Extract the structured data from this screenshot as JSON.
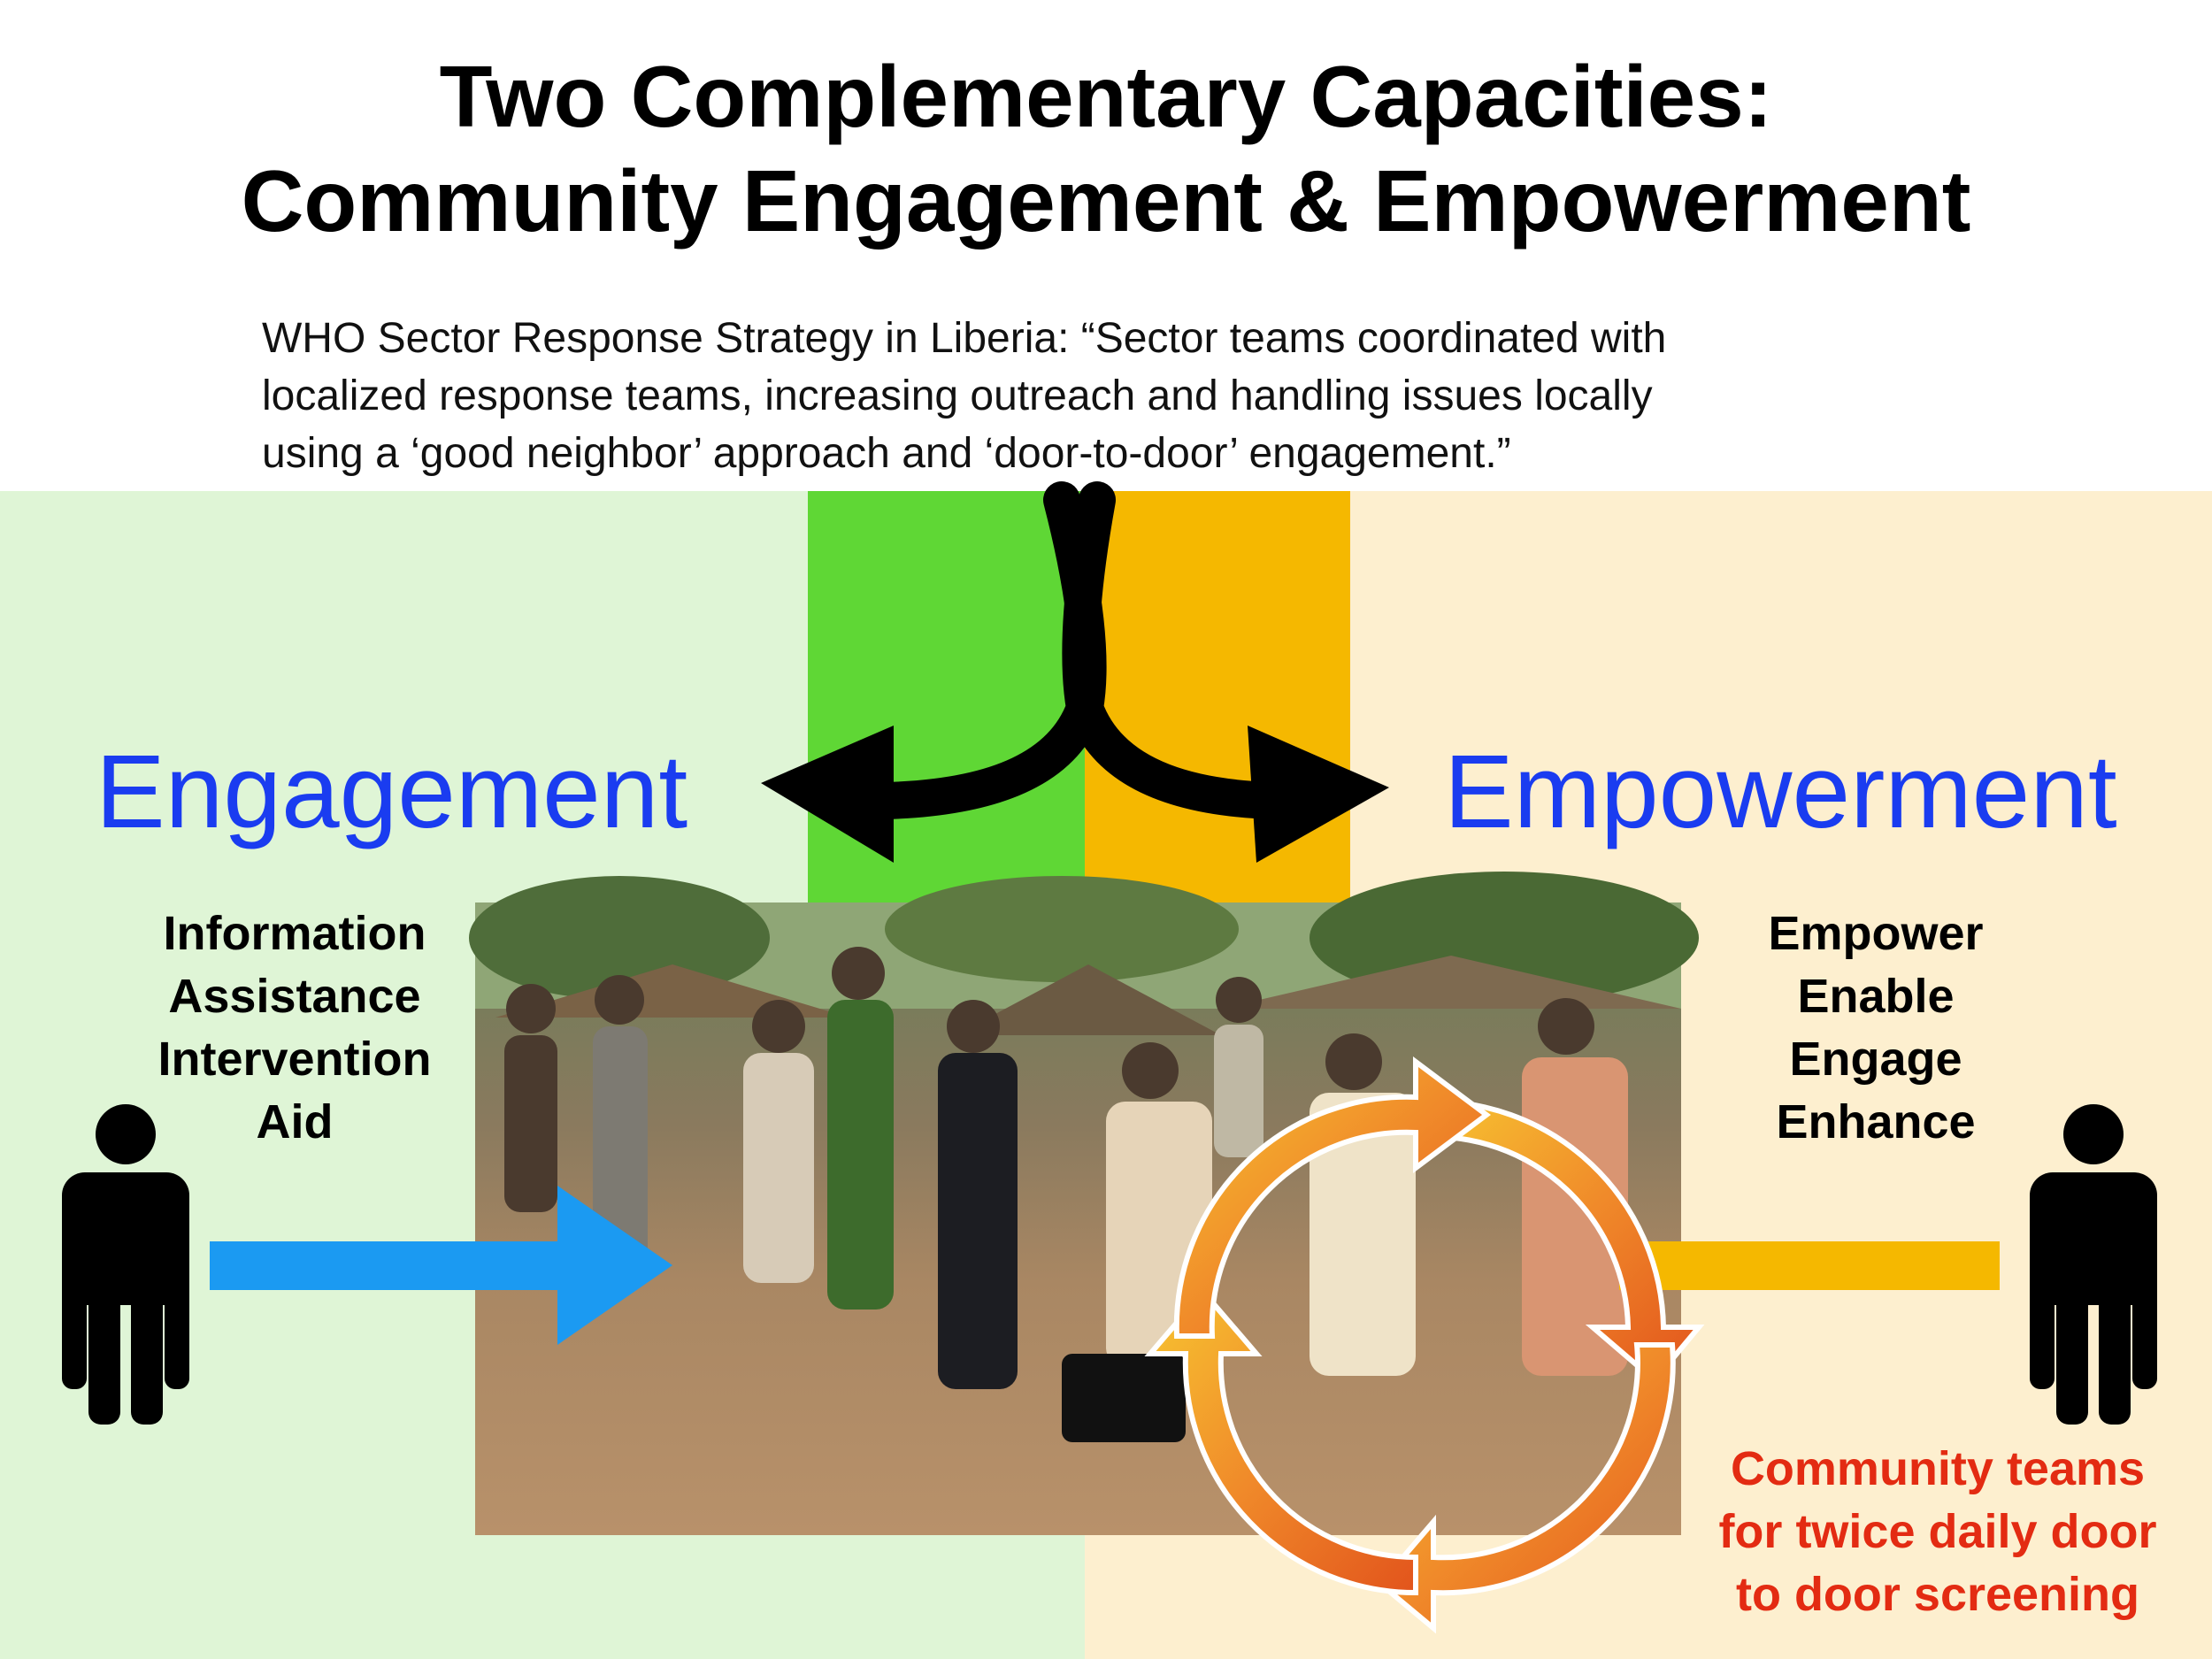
{
  "title": {
    "line1": "Two Complementary Capacities:",
    "line2": "Community Engagement & Empowerment"
  },
  "quote": {
    "line1": "WHO Sector Response Strategy in Liberia: “Sector teams coordinated with",
    "line2": "localized response teams, increasing outreach and handling issues locally",
    "line3": "using a ‘good neighbor’ approach and ‘door-to-door’ engagement.”"
  },
  "left": {
    "heading": "Engagement",
    "items": [
      "Information",
      "Assistance",
      "Intervention",
      "Aid"
    ]
  },
  "right": {
    "heading": "Empowerment",
    "items": [
      "Empower",
      "Enable",
      "Engage",
      "Enhance"
    ],
    "note": [
      "Community teams",
      "for twice daily door",
      "to door screening"
    ]
  },
  "colors": {
    "left_panel": "#dff5d6",
    "right_panel": "#fdefcf",
    "center_green": "#5fd735",
    "center_orange": "#f5b800",
    "heading_blue": "#1a3cf0",
    "arrow_blue": "#1b9af2",
    "note_red": "#e32b12"
  },
  "icons": [
    "person-icon",
    "curved-split-arrow-icon",
    "cycle-arrows-icon",
    "right-arrow-icon"
  ]
}
